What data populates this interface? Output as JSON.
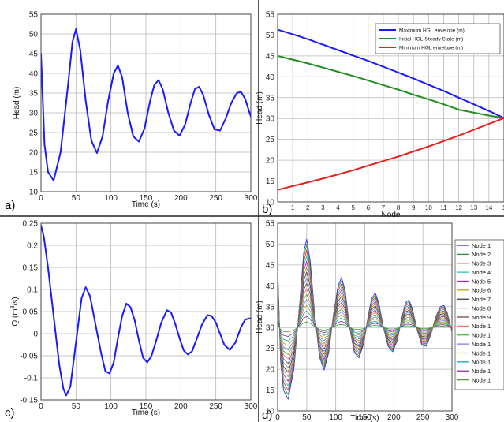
{
  "chart_data": [
    {
      "type": "line",
      "panel_label": "a)",
      "xlabel": "Time (s)",
      "ylabel": "Head (m)",
      "xlim": [
        0,
        300
      ],
      "ylim": [
        10,
        55
      ],
      "xticks": [
        "0",
        "50",
        "100",
        "150",
        "200",
        "250",
        "300"
      ],
      "yticks": [
        "10",
        "15",
        "20",
        "25",
        "30",
        "35",
        "40",
        "45",
        "50",
        "55"
      ],
      "grid": true,
      "series": [
        {
          "color": "#1a1aff",
          "x": [
            0,
            5,
            10,
            18,
            28,
            38,
            45,
            50,
            56,
            64,
            72,
            80,
            88,
            96,
            104,
            110,
            116,
            124,
            132,
            140,
            148,
            156,
            162,
            168,
            174,
            182,
            190,
            198,
            206,
            214,
            220,
            226,
            232,
            240,
            248,
            256,
            264,
            272,
            280,
            286,
            292,
            300
          ],
          "y": [
            45,
            22,
            15,
            12.8,
            20,
            36,
            48,
            51.2,
            46,
            33,
            23,
            19.8,
            24,
            33,
            40,
            42,
            39,
            30,
            24,
            22.7,
            26,
            33,
            37,
            38.3,
            36,
            30,
            25.5,
            24.2,
            27,
            32.5,
            36,
            36.6,
            34.5,
            29.5,
            25.8,
            25.5,
            28.5,
            32.5,
            35,
            35.3,
            33.5,
            29
          ]
        }
      ]
    },
    {
      "type": "line",
      "panel_label": "b)",
      "xlabel": "Node",
      "ylabel": "Head (m)",
      "xlim": [
        0,
        15
      ],
      "ylim": [
        10,
        55
      ],
      "xticks": [
        "1",
        "2",
        "3",
        "4",
        "5",
        "6",
        "7",
        "8",
        "9",
        "10",
        "11",
        "12",
        "13",
        "14",
        "1"
      ],
      "yticks": [
        "10",
        "15",
        "20",
        "25",
        "30",
        "35",
        "40",
        "45",
        "50",
        "55"
      ],
      "grid": true,
      "legend_position": "top-right",
      "series": [
        {
          "name": "Maximum HGL envelope (m)",
          "color": "#1a1aff",
          "x": [
            0,
            1,
            2,
            3,
            4,
            5,
            6,
            7,
            8,
            9,
            10,
            11,
            12,
            13,
            14,
            15
          ],
          "y": [
            51.3,
            50.2,
            49.0,
            47.7,
            46.4,
            45.1,
            43.8,
            42.4,
            41.0,
            39.6,
            38.1,
            36.6,
            35.0,
            33.4,
            31.8,
            30.1
          ]
        },
        {
          "name": "Initial HGL-Steady State (m)",
          "color": "#1f8f1f",
          "x": [
            0,
            1,
            2,
            3,
            4,
            5,
            6,
            7,
            8,
            9,
            10,
            11,
            12,
            13,
            14,
            15
          ],
          "y": [
            45.0,
            44.1,
            43.2,
            42.2,
            41.2,
            40.2,
            39.1,
            38.0,
            36.9,
            35.7,
            34.6,
            33.4,
            32.1,
            31.4,
            30.7,
            30.1
          ]
        },
        {
          "name": "Minimum HGL envelope (m)",
          "color": "#e8201a",
          "x": [
            0,
            1,
            2,
            3,
            4,
            5,
            6,
            7,
            8,
            9,
            10,
            11,
            12,
            13,
            14,
            15
          ],
          "y": [
            12.9,
            13.8,
            14.7,
            15.6,
            16.6,
            17.6,
            18.7,
            19.8,
            20.9,
            22.1,
            23.3,
            24.6,
            25.9,
            27.3,
            28.7,
            30.1
          ]
        }
      ]
    },
    {
      "type": "line",
      "panel_label": "c)",
      "xlabel": "Time (s)",
      "ylabel": "Q (m³/s)",
      "xlim": [
        0,
        300
      ],
      "ylim": [
        -0.15,
        0.25
      ],
      "xticks": [
        "0",
        "50",
        "100",
        "150",
        "200",
        "250",
        "300"
      ],
      "yticks": [
        "-0.15",
        "-0.1",
        "-0.05",
        "0",
        "0.05",
        "0.1",
        "0.15",
        "0.2",
        "0.25"
      ],
      "grid": true,
      "series": [
        {
          "color": "#1a1aff",
          "x": [
            0,
            4,
            10,
            18,
            26,
            32,
            36,
            42,
            50,
            58,
            64,
            70,
            78,
            86,
            92,
            98,
            104,
            110,
            116,
            122,
            128,
            134,
            140,
            146,
            152,
            158,
            164,
            172,
            180,
            186,
            192,
            198,
            204,
            210,
            216,
            222,
            230,
            238,
            244,
            250,
            256,
            262,
            270,
            278,
            286,
            292,
            300
          ],
          "y": [
            0.245,
            0.22,
            0.15,
            0.04,
            -0.07,
            -0.125,
            -0.14,
            -0.12,
            -0.02,
            0.08,
            0.105,
            0.085,
            0.02,
            -0.045,
            -0.085,
            -0.09,
            -0.065,
            -0.01,
            0.04,
            0.068,
            0.06,
            0.03,
            -0.015,
            -0.055,
            -0.065,
            -0.05,
            -0.02,
            0.025,
            0.053,
            0.048,
            0.022,
            -0.01,
            -0.038,
            -0.047,
            -0.04,
            -0.015,
            0.02,
            0.042,
            0.04,
            0.025,
            0.0,
            -0.025,
            -0.037,
            -0.02,
            0.015,
            0.032,
            0.035
          ]
        }
      ]
    },
    {
      "type": "line",
      "panel_label": "d)",
      "xlabel": "Time (s)",
      "ylabel": "Head (m)",
      "xlim": [
        0,
        300
      ],
      "ylim": [
        10,
        55
      ],
      "xticks": [
        "0",
        "50",
        "100",
        "150",
        "200",
        "250",
        "300"
      ],
      "yticks": [
        "10",
        "15",
        "20",
        "25",
        "30",
        "35",
        "40",
        "45",
        "50",
        "55"
      ],
      "grid": true,
      "legend_position": "right",
      "legend": [
        "Node 1",
        "Node 2",
        "Node 3",
        "Node 4",
        "Node 5",
        "Node 6",
        "Node 7",
        "Node 8",
        "Node 9",
        "Node 1",
        "Node 1",
        "Node 1",
        "Node 1",
        "Node 1",
        "Node 1",
        "Node 1"
      ],
      "series_colors": [
        "#1a1aff",
        "#1f8f1f",
        "#e8201a",
        "#19c0c0",
        "#c019c0",
        "#b0a000",
        "#303030",
        "#5a8cff",
        "#7a3a2a",
        "#ff6a6a",
        "#2ac02a",
        "#7070ff",
        "#c8a000",
        "#00a0c8",
        "#9020a0",
        "#3a9f3a"
      ],
      "reference_series": {
        "x": [
          0,
          5,
          10,
          18,
          28,
          38,
          45,
          50,
          56,
          64,
          72,
          80,
          88,
          96,
          104,
          110,
          116,
          124,
          132,
          140,
          148,
          156,
          162,
          168,
          174,
          182,
          190,
          198,
          206,
          214,
          220,
          226,
          232,
          240,
          248,
          256,
          264,
          272,
          280,
          286,
          292,
          300
        ],
        "y": [
          45,
          22,
          15,
          12.8,
          20,
          36,
          48,
          51.2,
          46,
          33,
          23,
          19.8,
          24,
          33,
          40,
          42,
          39,
          30,
          24,
          22.7,
          26,
          33,
          37,
          38.3,
          36,
          30,
          25.5,
          24.2,
          27,
          32.5,
          36,
          36.6,
          34.5,
          29.5,
          25.8,
          25.5,
          28.5,
          32.5,
          35,
          35.3,
          33.5,
          29
        ]
      },
      "baseline": 30
    }
  ]
}
